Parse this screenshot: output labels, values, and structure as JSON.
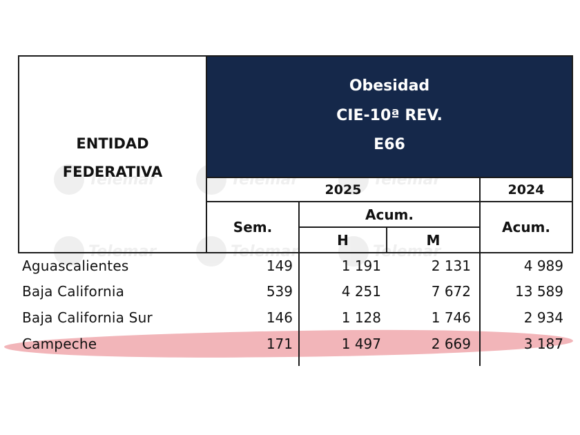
{
  "table": {
    "entity_header": {
      "line1": "ENTIDAD",
      "line2": "FEDERATIVA"
    },
    "disease_header": {
      "name": "Obesidad",
      "code_system": "CIE-10ª REV.",
      "code": "E66"
    },
    "year_current": "2025",
    "year_previous": "2024",
    "col_sem": "Sem.",
    "col_acum": "Acum.",
    "col_h": "H",
    "col_m": "M",
    "col_acum_prev": "Acum.",
    "rows": [
      {
        "entity": "Aguascalientes",
        "sem": "149",
        "h": "1 191",
        "m": "2 131",
        "acum_prev": "4 989"
      },
      {
        "entity": "Baja California",
        "sem": "539",
        "h": "4 251",
        "m": "7 672",
        "acum_prev": "13 589"
      },
      {
        "entity": "Baja California Sur",
        "sem": "146",
        "h": "1 128",
        "m": "1 746",
        "acum_prev": "2 934"
      },
      {
        "entity": "Campeche",
        "sem": "171",
        "h": "1 497",
        "m": "2 669",
        "acum_prev": "3 187"
      }
    ]
  },
  "highlight": {
    "row": "Campeche",
    "color": "#e87880"
  },
  "colors": {
    "header_fill": "#15284a",
    "header_text": "#ffffff",
    "rule": "#1a1a1a"
  },
  "watermark": {
    "text": "Telemar"
  }
}
